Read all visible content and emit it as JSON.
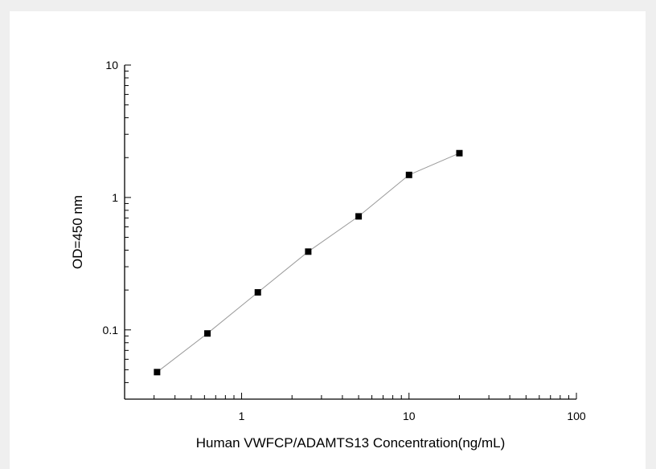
{
  "chart_data": {
    "type": "scatter",
    "title": "",
    "xlabel": "Human VWFCP/ADAMTS13 Concentration(ng/mL)",
    "ylabel": "OD=450 nm",
    "x_scale": "log",
    "y_scale": "log",
    "xlim": [
      0.2,
      100
    ],
    "ylim": [
      0.03,
      10
    ],
    "x_ticks": [
      "1",
      "10",
      "100"
    ],
    "y_ticks": [
      "0.1",
      "1",
      "10"
    ],
    "grid": false,
    "legend": "none",
    "series": [
      {
        "x": [
          0.3125,
          0.625,
          1.25,
          2.5,
          5,
          10,
          20
        ],
        "y": [
          0.048,
          0.094,
          0.192,
          0.39,
          0.72,
          1.48,
          2.16
        ],
        "marker": "square",
        "marker_color": "#000000",
        "line_color": "#9a9a9a"
      }
    ]
  }
}
